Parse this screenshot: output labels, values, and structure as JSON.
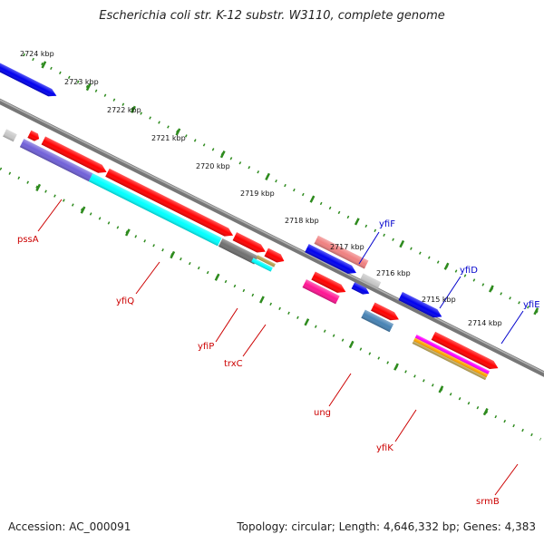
{
  "title": "Escherichia coli str. K-12 substr. W3110, complete genome",
  "footer": {
    "accession": "Accession: AC_000091",
    "topology": "Topology: circular; Length: 4,646,332 bp; Genes: 4,383"
  },
  "colors": {
    "backbone": "#8c8c8c",
    "ruler": "#2e8b1e",
    "forward_label": "#0000cc",
    "reverse_label": "#cc0000"
  },
  "ruler_ticks": [
    "2724 kbp",
    "2723 kbp",
    "2722 kbp",
    "2721 kbp",
    "2720 kbp",
    "2719 kbp",
    "2718 kbp",
    "2717 kbp",
    "2716 kbp",
    "2715 kbp",
    "2714 kbp"
  ],
  "gene_labels": [
    {
      "name": "pssA",
      "color": "#cc0000"
    },
    {
      "name": "yfiQ",
      "color": "#cc0000"
    },
    {
      "name": "yfiP",
      "color": "#cc0000"
    },
    {
      "name": "trxC",
      "color": "#cc0000"
    },
    {
      "name": "ung",
      "color": "#cc0000"
    },
    {
      "name": "yfiK",
      "color": "#cc0000"
    },
    {
      "name": "srmB",
      "color": "#cc0000"
    },
    {
      "name": "yfiF",
      "color": "#0000cc"
    },
    {
      "name": "yfiD",
      "color": "#0000cc"
    },
    {
      "name": "yfiE",
      "color": "#0000cc"
    }
  ],
  "feature_colors": {
    "red": "#ff0000",
    "blue": "#0000ee",
    "cyan": "#00ffff",
    "purple": "#7060d8",
    "lightgray": "#c8c8c8",
    "darkgray": "#707070",
    "pink": "#ff1493",
    "salmon": "#f08080",
    "steel": "#4682b4",
    "olive": "#b8a050",
    "orange": "#ffa500",
    "magenta": "#ff00ff"
  }
}
